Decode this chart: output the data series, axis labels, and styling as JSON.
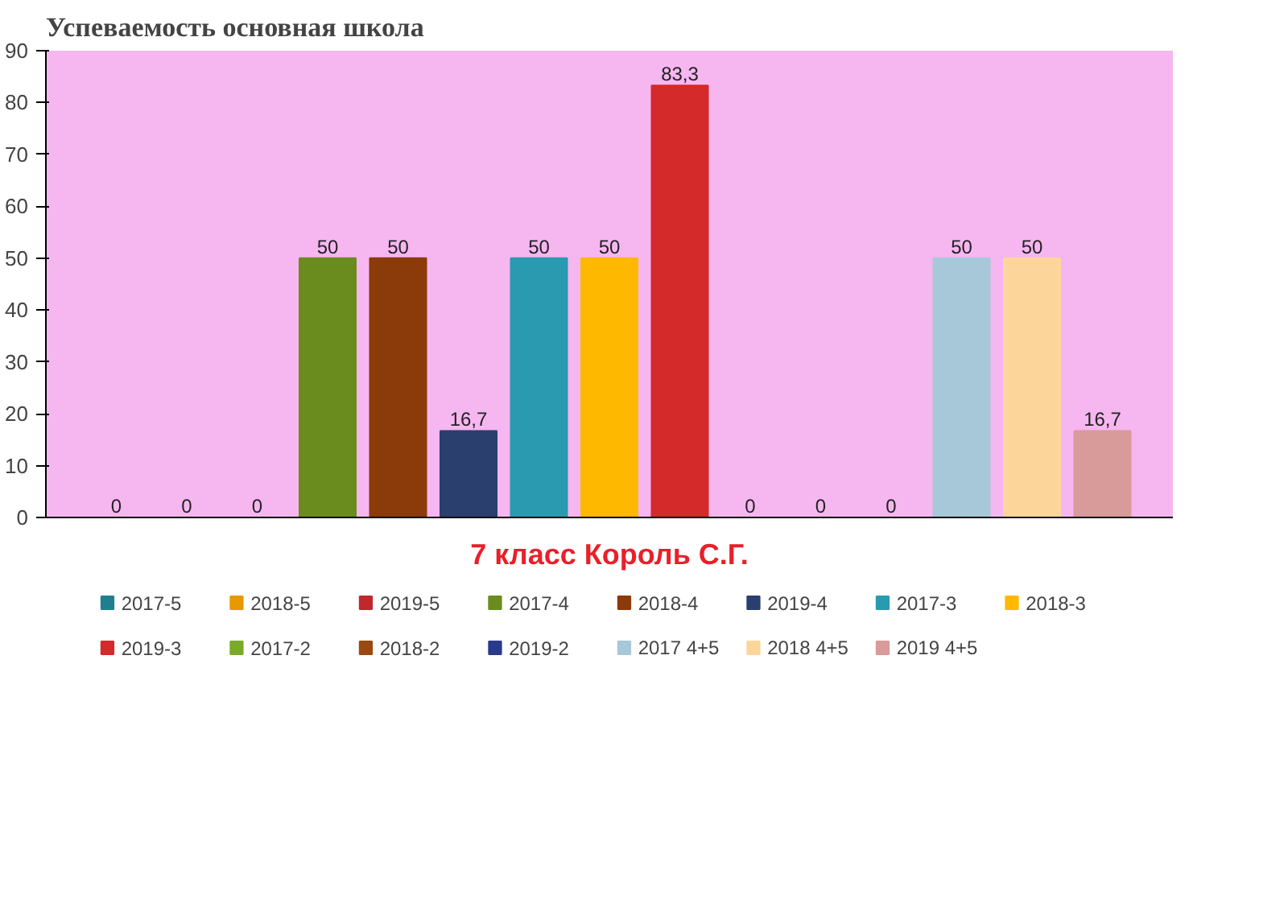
{
  "chart_data": {
    "type": "bar",
    "title": "Успеваемость основная школа",
    "annotations": [
      "7 класс Король С.Г."
    ],
    "categories": [
      null
    ],
    "series": [
      {
        "name": "2017-5",
        "color": "#1f7f8f",
        "values": [
          0
        ],
        "value_labels": [
          "0"
        ]
      },
      {
        "name": "2018-5",
        "color": "#e69a00",
        "values": [
          0
        ],
        "value_labels": [
          "0"
        ]
      },
      {
        "name": "2019-5",
        "color": "#c0282d",
        "values": [
          0
        ],
        "value_labels": [
          "0"
        ]
      },
      {
        "name": "2017-4",
        "color": "#6a8c1f",
        "values": [
          50
        ],
        "value_labels": [
          "50"
        ]
      },
      {
        "name": "2018-4",
        "color": "#8b3a0a",
        "values": [
          50
        ],
        "value_labels": [
          "50"
        ]
      },
      {
        "name": "2019-4",
        "color": "#2a3f6e",
        "values": [
          16.7
        ],
        "value_labels": [
          "16,7"
        ]
      },
      {
        "name": "2017-3",
        "color": "#2a9ab0",
        "values": [
          50
        ],
        "value_labels": [
          "50"
        ]
      },
      {
        "name": "2018-3",
        "color": "#ffb800",
        "values": [
          50
        ],
        "value_labels": [
          "50"
        ]
      },
      {
        "name": "2019-3",
        "color": "#d42a2a",
        "values": [
          83.3
        ],
        "value_labels": [
          "83,3"
        ]
      },
      {
        "name": "2017-2",
        "color": "#7aaa2a",
        "values": [
          0
        ],
        "value_labels": [
          "0"
        ]
      },
      {
        "name": "2018-2",
        "color": "#9a4a10",
        "values": [
          0
        ],
        "value_labels": [
          "0"
        ]
      },
      {
        "name": "2019-2",
        "color": "#2a3a8a",
        "values": [
          0
        ],
        "value_labels": [
          "0"
        ]
      },
      {
        "name": "2017 4+5",
        "color": "#a6c8d8",
        "values": [
          50
        ],
        "value_labels": [
          "50"
        ]
      },
      {
        "name": "2018 4+5",
        "color": "#fcd59a",
        "values": [
          50
        ],
        "value_labels": [
          "50"
        ]
      },
      {
        "name": "2019 4+5",
        "color": "#d99a9a",
        "values": [
          16.7
        ],
        "value_labels": [
          "16,7"
        ]
      }
    ],
    "ylim": [
      0,
      90
    ],
    "yticks": [
      0,
      10,
      20,
      30,
      40,
      50,
      60,
      70,
      80,
      90
    ],
    "grid": false,
    "legend": "bottom",
    "tick_labels": "y"
  }
}
